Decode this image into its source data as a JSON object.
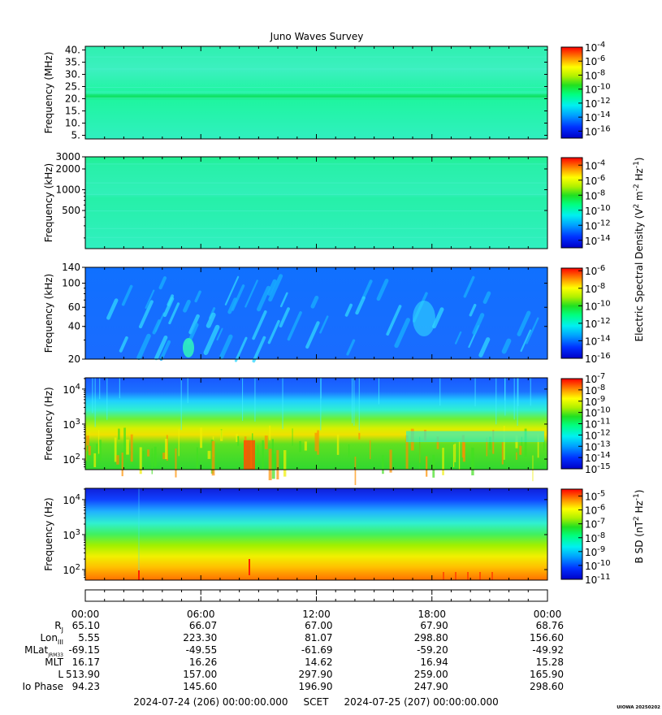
{
  "chart_data": {
    "type": "heatmap",
    "title": "Juno Waves Survey",
    "panels": [
      {
        "ylabel": "Frequency (MHz)",
        "yscale": "linear",
        "ylim": [
          3.5,
          41.5
        ],
        "ticks": [
          "40.",
          "35.",
          "30.",
          "25.",
          "20.",
          "15.",
          "10.",
          "5."
        ],
        "tick_values": [
          40,
          35,
          30,
          25,
          20,
          15,
          10,
          5
        ],
        "features": "uniform background with enhanced emission band near 21 MHz",
        "colorbar": {
          "labels": [
            "10^-4",
            "10^-6",
            "10^-8",
            "10^-10",
            "10^-12",
            "10^-14",
            "10^-16"
          ],
          "exponents": [
            "-4",
            "-6",
            "-8",
            "-10",
            "-12",
            "-14",
            "-16"
          ],
          "range_log10": [
            -17,
            -4
          ]
        }
      },
      {
        "ylabel": "Frequency (kHz)",
        "yscale": "log",
        "ylim": [
          140,
          3000
        ],
        "ticks": [
          "3000",
          "2000",
          "1000",
          "500"
        ],
        "tick_values": [
          3000,
          2000,
          1000,
          500
        ],
        "features": "uniform background, faint bands near 2700 kHz and 800 kHz",
        "colorbar": {
          "labels": [
            "10^-4",
            "10^-6",
            "10^-8",
            "10^-10",
            "10^-12",
            "10^-14"
          ],
          "exponents": [
            "-4",
            "-6",
            "-8",
            "-10",
            "-12",
            "-14"
          ],
          "range_log10": [
            -15,
            -3
          ]
        }
      },
      {
        "ylabel": "Frequency (kHz)",
        "yscale": "log",
        "ylim": [
          20,
          140
        ],
        "ticks": [
          "140",
          "100",
          "60",
          "40",
          "20"
        ],
        "tick_values": [
          140,
          100,
          60,
          40,
          20
        ],
        "features": "drifting bursty emission streaks",
        "colorbar": {
          "labels": [
            "10^-6",
            "10^-8",
            "10^-10",
            "10^-12",
            "10^-14",
            "10^-16"
          ],
          "exponents": [
            "-6",
            "-8",
            "-10",
            "-12",
            "-14",
            "-16"
          ],
          "range_log10": [
            -16,
            -5.7
          ]
        }
      },
      {
        "ylabel": "Frequency (Hz)",
        "yscale": "log",
        "ylim": [
          50,
          21000
        ],
        "ticks": [
          "10^4",
          "10^3",
          "10^2"
        ],
        "tick_values": [
          10000,
          1000,
          100
        ],
        "features": "intense low-frequency emission below ~1 kHz, background above",
        "colorbar": {
          "labels": [
            "10^-7",
            "10^-8",
            "10^-9",
            "10^-10",
            "10^-11",
            "10^-12",
            "10^-13",
            "10^-14",
            "10^-15"
          ],
          "exponents": [
            "-7",
            "-8",
            "-9",
            "-10",
            "-11",
            "-12",
            "-13",
            "-14",
            "-15"
          ],
          "range_log10": [
            -15,
            -7
          ]
        }
      },
      {
        "ylabel": "Frequency (Hz)",
        "yscale": "log",
        "ylim": [
          50,
          21000
        ],
        "ticks": [
          "10^4",
          "10^3",
          "10^2"
        ],
        "tick_values": [
          10000,
          1000,
          100
        ],
        "features": "magnetic spectral density decreasing with frequency",
        "colorbar": {
          "labels": [
            "10^-5",
            "10^-6",
            "10^-7",
            "10^-8",
            "10^-9",
            "10^-10",
            "10^-11"
          ],
          "exponents": [
            "-5",
            "-6",
            "-7",
            "-8",
            "-9",
            "-10",
            "-11"
          ],
          "range_log10": [
            -11,
            -4.5
          ]
        }
      }
    ],
    "colorbar_label_electric": "Electric Spectral Density (V^2 m^-2 Hz^-1)",
    "colorbar_label_magnetic": "B SD (nT^2 Hz^-1)",
    "x_ticks": [
      "00:00",
      "06:00",
      "12:00",
      "18:00",
      "00:00"
    ],
    "x_hours": [
      0,
      6,
      12,
      18,
      24
    ],
    "ephemeris": [
      {
        "label": "R",
        "sub": "J",
        "values": [
          "65.10",
          "66.07",
          "67.00",
          "67.90",
          "68.76"
        ]
      },
      {
        "label": "Lon",
        "sub": "III",
        "values": [
          "5.55",
          "223.30",
          "81.07",
          "298.80",
          "156.60"
        ]
      },
      {
        "label": "MLat",
        "sub": "JRM33",
        "values": [
          "-69.15",
          "-49.55",
          "-61.69",
          "-59.20",
          "-49.92"
        ]
      },
      {
        "label": "MLT",
        "sub": "",
        "values": [
          "16.17",
          "16.26",
          "14.62",
          "16.94",
          "15.28"
        ]
      },
      {
        "label": "L",
        "sub": "",
        "values": [
          "513.90",
          "157.00",
          "297.90",
          "259.00",
          "165.90"
        ]
      },
      {
        "label": "Io Phase",
        "sub": "",
        "values": [
          "94.23",
          "145.60",
          "196.90",
          "247.90",
          "298.60"
        ]
      }
    ],
    "time_range": "2024-07-24 (206) 00:00:00.000     SCET     2024-07-25 (207) 00:00:00.000",
    "credit": "UIOWA 20250202"
  }
}
